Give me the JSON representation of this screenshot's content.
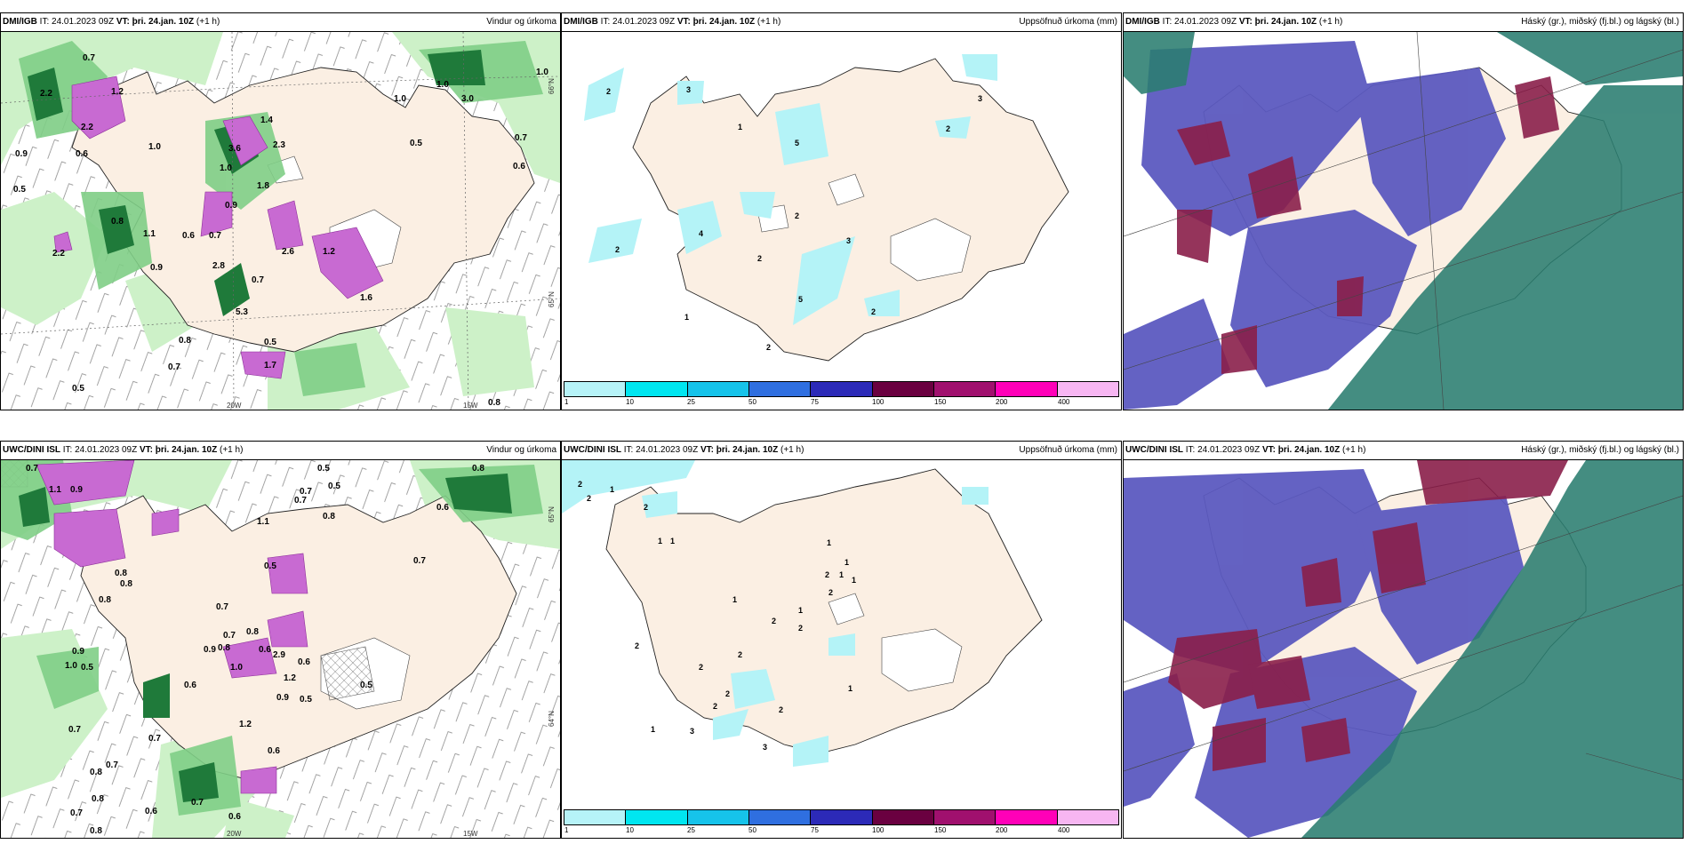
{
  "panels": [
    {
      "source": "DMI/IGB",
      "it": "IT: 24.01.2023 09Z",
      "vt_label": "VT:",
      "vt": "þri. 24.jan. 10Z",
      "lead": "(+1 h)",
      "title": "Vindur og úrkoma",
      "values": [
        "0.7",
        "2.2",
        "0.9",
        "0.6",
        "0.5",
        "1.2",
        "2.2",
        "1.0",
        "1.4",
        "2.3",
        "3.6",
        "1.0",
        "1.8",
        "0.9",
        "0.6",
        "0.7",
        "2.2",
        "1.1",
        "0.8",
        "2.8",
        "0.9",
        "2.6",
        "0.7",
        "1.2",
        "5.3",
        "0.8",
        "0.5",
        "0.7",
        "1.7",
        "0.5",
        "1.0",
        "1.0",
        "3.0",
        "1.0",
        "0.5",
        "0.7",
        "0.6",
        "0.8",
        "1.6"
      ],
      "axis": {
        "lat_a": "66°N",
        "lat_b": "65°N",
        "lon_a": "20W",
        "lon_b": "15W"
      }
    },
    {
      "source": "DMI/IGB",
      "it": "IT: 24.01.2023 09Z",
      "vt_label": "VT:",
      "vt": "þri. 24.jan. 10Z",
      "lead": "(+1 h)",
      "title": "Uppsöfnuð úrkoma (mm)",
      "values": [
        "2",
        "3",
        "1",
        "5",
        "2",
        "3",
        "2",
        "4",
        "2",
        "2",
        "3",
        "5",
        "1",
        "2",
        "2"
      ]
    },
    {
      "source": "DMI/IGB",
      "it": "IT: 24.01.2023 09Z",
      "vt_label": "VT:",
      "vt": "þri. 24.jan. 10Z",
      "lead": "(+1 h)",
      "title": "Háský (gr.), miðský (fj.bl.) og lágský (bl.)"
    },
    {
      "source": "UWC/DINI ISL",
      "it": "IT: 24.01.2023 09Z",
      "vt_label": "VT:",
      "vt": "þri. 24.jan. 10Z",
      "lead": "(+1 h)",
      "title": "Vindur og úrkoma",
      "values": [
        "0.7",
        "1.1",
        "0.9",
        "0.5",
        "0.5",
        "0.7",
        "0.7",
        "1.1",
        "0.8",
        "0.7",
        "0.8",
        "0.6",
        "0.8",
        "0.8",
        "0.5",
        "0.8",
        "0.7",
        "0.9",
        "1.0",
        "0.5",
        "0.7",
        "0.8",
        "1.0",
        "0.6",
        "0.9",
        "2.9",
        "0.8",
        "0.6",
        "1.2",
        "0.9",
        "0.5",
        "0.5",
        "0.6",
        "0.7",
        "1.2",
        "0.6",
        "0.7",
        "0.8",
        "0.7",
        "0.7",
        "0.8",
        "0.6",
        "0.7",
        "0.8",
        "0.6"
      ],
      "axis": {
        "lat_a": "65°N",
        "lat_b": "64°N",
        "lon_a": "20W",
        "lon_b": "15W"
      }
    },
    {
      "source": "UWC/DINI ISL",
      "it": "IT: 24.01.2023 09Z",
      "vt_label": "VT:",
      "vt": "þri. 24.jan. 10Z",
      "lead": "(+1 h)",
      "title": "Uppsöfnuð úrkoma (mm)",
      "values": [
        "2",
        "2",
        "1",
        "2",
        "1",
        "1",
        "1",
        "1",
        "2",
        "1",
        "2",
        "1",
        "1",
        "2",
        "2",
        "2",
        "2",
        "2",
        "1",
        "2",
        "2",
        "3",
        "1",
        "3",
        "1",
        "2"
      ]
    },
    {
      "source": "UWC/DINI ISL",
      "it": "IT: 24.01.2023 09Z",
      "vt_label": "VT:",
      "vt": "þri. 24.jan. 10Z",
      "lead": "(+1 h)",
      "title": "Háský (gr.), miðský (fj.bl.) og lágský (bl.)"
    }
  ],
  "colorbar": {
    "colors": [
      "#b6f3f8",
      "#00e6f0",
      "#16c3ea",
      "#2f6fe0",
      "#2c2ab8",
      "#6a0040",
      "#a0106e",
      "#ff00b8",
      "#f7b6f2"
    ],
    "ticks": [
      "1",
      "10",
      "25",
      "50",
      "75",
      "100",
      "150",
      "200",
      "400"
    ]
  },
  "colors": {
    "land": "#fbefe3",
    "precip_light": "#cdf1c8",
    "precip_mid": "#7fce86",
    "precip_heavy": "#1f7a3a",
    "snow": "#c86ad2",
    "accum": "#b4f3f7",
    "high": "#2a7d70",
    "mid": "#5c5ac0",
    "low": "#8a1f4a"
  }
}
